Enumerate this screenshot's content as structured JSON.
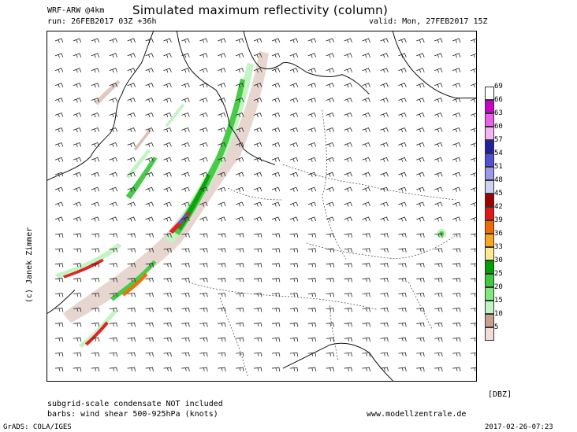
{
  "header": {
    "model": "WRF-ARW @4km",
    "title": "Simulated maximum reflectivity (column)",
    "run": "run: 26FEB2017 03Z +36h",
    "valid": "valid: Mon, 27FEB2017 15Z"
  },
  "footer": {
    "note1": "subgrid-scale condensate NOT included",
    "note2": "barbs: wind shear 500-925hPa (knots)",
    "website": "www.modellzentrale.de",
    "software": "GrADS: COLA/IGES",
    "timestamp": "2017-02-26-07:23"
  },
  "side": {
    "copyright": "(c) Janek Zimmer"
  },
  "legend": {
    "unit": "[DBZ]",
    "levels": [
      {
        "v": "69",
        "c": "#ffffff"
      },
      {
        "v": "66",
        "c": "#c800c8"
      },
      {
        "v": "63",
        "c": "#e860e8"
      },
      {
        "v": "60",
        "c": "#f5b4f5"
      },
      {
        "v": "57",
        "c": "#2020a0"
      },
      {
        "v": "54",
        "c": "#5050d8"
      },
      {
        "v": "51",
        "c": "#9a9ae8"
      },
      {
        "v": "48",
        "c": "#d0d0f4"
      },
      {
        "v": "45",
        "c": "#a00000"
      },
      {
        "v": "42",
        "c": "#e01818"
      },
      {
        "v": "39",
        "c": "#f06a00"
      },
      {
        "v": "36",
        "c": "#f8a820"
      },
      {
        "v": "33",
        "c": "#fce890"
      },
      {
        "v": "30",
        "c": "#00a000"
      },
      {
        "v": "25",
        "c": "#40c840"
      },
      {
        "v": "20",
        "c": "#80e880"
      },
      {
        "v": "15",
        "c": "#c0f4c0"
      },
      {
        "v": "10",
        "c": "#c8a090"
      },
      {
        "v": "5",
        "c": "#f2dcd6"
      }
    ]
  }
}
